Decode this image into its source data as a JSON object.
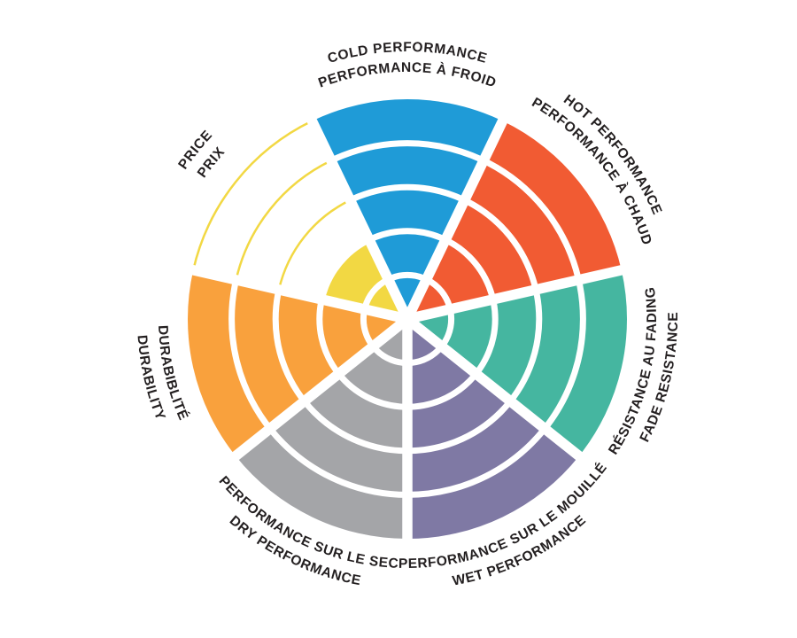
{
  "chart_data": {
    "type": "polar-rose",
    "title": "",
    "rings": 5,
    "value_max": 5,
    "direction": "clockwise",
    "start_sector_centered_at_top": true,
    "legend": "none",
    "grid": "white ring separators and white radial gap spokes",
    "background_color": "#ffffff",
    "label_text_color": "#231F20",
    "categories": [
      {
        "id": "cold",
        "label_en": "COLD PERFORMANCE",
        "label_fr": "PERFORMANCE À FROID",
        "value": 5,
        "color": "#1F9BD7",
        "label_style": "outward",
        "fill_style": "solid"
      },
      {
        "id": "hot",
        "label_en": "HOT PERFORMANCE",
        "label_fr": "PERFORMANCE À CHAUD",
        "value": 5,
        "color": "#F15B33",
        "label_style": "outward",
        "fill_style": "solid"
      },
      {
        "id": "fade",
        "label_en": "FADE RESISTANCE",
        "label_fr": "RÉSISTANCE AU FADING",
        "value": 5,
        "color": "#45B6A0",
        "label_style": "inward",
        "fill_style": "solid"
      },
      {
        "id": "wet",
        "label_en": "WET PERFORMANCE",
        "label_fr": "PERFORMANCE SUR LE MOUILLÉ",
        "value": 5,
        "color": "#7F79A4",
        "label_style": "inward",
        "fill_style": "solid"
      },
      {
        "id": "dry",
        "label_en": "DRY PERFORMANCE",
        "label_fr": "PERFORMANCE SUR LE SEC",
        "value": 5,
        "color": "#A4A5A8",
        "label_style": "inward",
        "fill_style": "solid"
      },
      {
        "id": "durability",
        "label_en": "DURABILITY",
        "label_fr": "DURABIBLITÉ",
        "value": 5,
        "color": "#F9A13D",
        "label_style": "inward",
        "fill_style": "solid"
      },
      {
        "id": "price",
        "label_en": "PRICE",
        "label_fr": "PRIX",
        "value": 2,
        "color": "#F2D843",
        "label_style": "outward",
        "fill_style": "solid-plus-outline-rings"
      }
    ]
  }
}
